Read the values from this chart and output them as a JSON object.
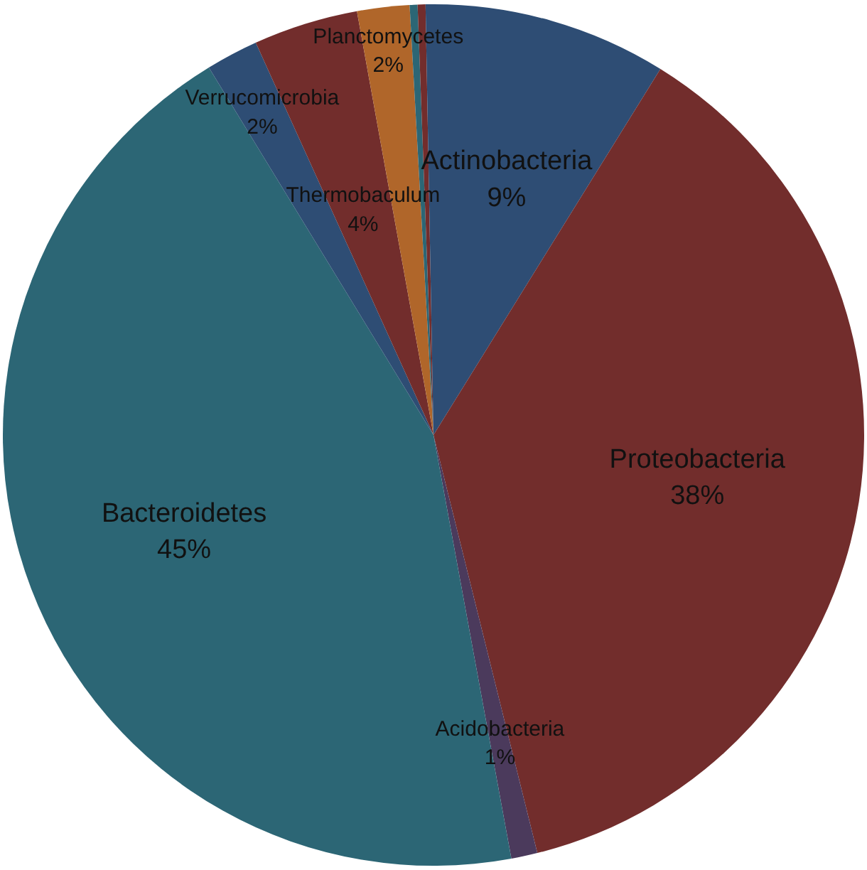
{
  "chart_data": {
    "type": "pie",
    "categories": [
      "Actinobacteria",
      "Proteobacteria",
      "Acidobacteria",
      "Bacteroidetes",
      "Verrucomicrobia",
      "Thermobaculum",
      "Planctomycetes",
      null,
      null,
      null
    ],
    "values": [
      9,
      38,
      1,
      45,
      2,
      4,
      2,
      0.3,
      0.3,
      0.3
    ],
    "colors": [
      "#2e4d74",
      "#722d2c",
      "#4b3a5c",
      "#2c6675",
      "#2e4d74",
      "#722d2c",
      "#b0662a",
      "#2c6675",
      "#722d2c",
      "#2e4d74"
    ],
    "value_labels": [
      "9%",
      "38%",
      "1%",
      "45%",
      "2%",
      "4%",
      "2%",
      null,
      null,
      null
    ]
  }
}
